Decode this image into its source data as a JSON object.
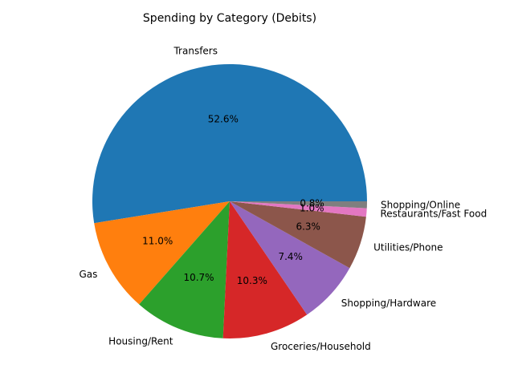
{
  "chart_data": {
    "type": "pie",
    "title": "Spending by Category (Debits)",
    "categories": [
      "Transfers",
      "Gas",
      "Housing/Rent",
      "Groceries/Household",
      "Shopping/Hardware",
      "Utilities/Phone",
      "Restaurants/Fast Food",
      "Shopping/Online"
    ],
    "values": [
      52.6,
      11.0,
      10.7,
      10.3,
      7.4,
      6.3,
      1.0,
      0.8
    ],
    "value_labels": [
      "52.6%",
      "11.0%",
      "10.7%",
      "10.3%",
      "7.4%",
      "6.3%",
      "1.0%",
      "0.8%"
    ],
    "colors": [
      "#1f77b4",
      "#ff7f0e",
      "#2ca02c",
      "#d62728",
      "#9467bd",
      "#8c564b",
      "#e377c2",
      "#7f7f7f"
    ],
    "start_angle": "0 degrees (3 o'clock)",
    "direction": "counterclockwise",
    "legend": "none"
  }
}
